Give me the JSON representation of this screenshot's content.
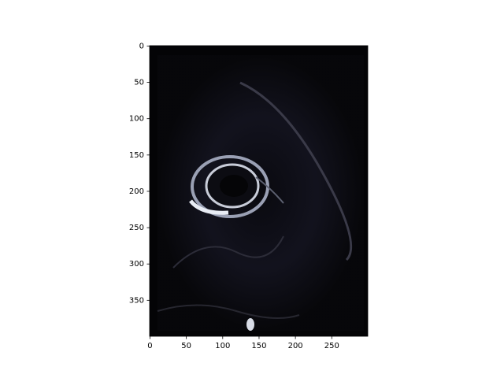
{
  "chart_data": {
    "type": "image",
    "xlim": [
      -0.5,
      299.5
    ],
    "ylim": [
      399.5,
      -0.5
    ],
    "xticks": [
      0,
      50,
      100,
      150,
      200,
      250
    ],
    "yticks": [
      0,
      50,
      100,
      150,
      200,
      250,
      300,
      350
    ]
  }
}
